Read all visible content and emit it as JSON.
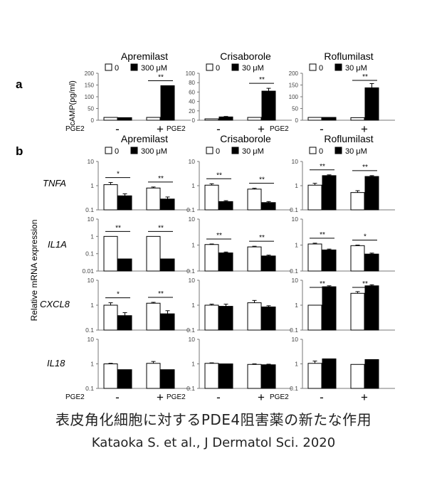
{
  "panel_labels": {
    "a": "a",
    "b": "b"
  },
  "legend": {
    "zero": "0",
    "dose_300": "300 μM",
    "dose_30": "30 μM"
  },
  "pge2": {
    "label": "PGE2",
    "minus": "-",
    "plus": "+"
  },
  "axis_titles": {
    "camp": "cAMP(pg/ml)",
    "mrna": "Relative mRNA expression"
  },
  "caption": {
    "line1": "表皮角化細胞に対するPDE4阻害薬の新たな作用",
    "line2": "Kataoka S. et al., J Dermatol Sci. 2020"
  },
  "colors": {
    "control": "#ffffff",
    "treated": "#000000"
  },
  "chart_data": [
    {
      "type": "bar",
      "panel": "a",
      "title": "Apremilast",
      "legend": "300 μM",
      "scale": "linear",
      "ylim": [
        0,
        200
      ],
      "ticks": [
        "200",
        "150",
        "100",
        "50",
        "0"
      ],
      "categories": [
        "-",
        "+"
      ],
      "series": [
        {
          "name": "0",
          "values": [
            12,
            12
          ],
          "err": [
            0,
            0
          ]
        },
        {
          "name": "300 μM",
          "values": [
            11,
            147
          ],
          "err": [
            0,
            0
          ]
        }
      ],
      "sig": [
        null,
        "**"
      ]
    },
    {
      "type": "bar",
      "panel": "a",
      "title": "Crisaborole",
      "legend": "30 μM",
      "scale": "linear",
      "ylim": [
        0,
        100
      ],
      "ticks": [
        "100",
        "80",
        "60",
        "40",
        "20",
        "0"
      ],
      "categories": [
        "-",
        "+"
      ],
      "series": [
        {
          "name": "0",
          "values": [
            3,
            6
          ],
          "err": [
            0,
            0
          ]
        },
        {
          "name": "30 μM",
          "values": [
            7,
            62
          ],
          "err": [
            1,
            6
          ]
        }
      ],
      "sig": [
        null,
        "**"
      ]
    },
    {
      "type": "bar",
      "panel": "a",
      "title": "Roflumilast",
      "legend": "30 μM",
      "scale": "linear",
      "ylim": [
        0,
        200
      ],
      "ticks": [
        "200",
        "150",
        "100",
        "50",
        "0"
      ],
      "categories": [
        "-",
        "+"
      ],
      "series": [
        {
          "name": "0",
          "values": [
            12,
            11
          ],
          "err": [
            0,
            0
          ]
        },
        {
          "name": "30 μM",
          "values": [
            12,
            138
          ],
          "err": [
            0,
            18
          ]
        }
      ],
      "sig": [
        null,
        "**"
      ]
    },
    {
      "type": "bar",
      "panel": "b",
      "gene": "TNFA",
      "drug": "Apremilast",
      "scale": "log",
      "ylim": [
        0.1,
        10
      ],
      "ticks": [
        "10",
        "1",
        "0.1"
      ],
      "categories": [
        "-",
        "+"
      ],
      "series": [
        {
          "name": "0",
          "values": [
            1.1,
            0.8
          ],
          "err": [
            0.25,
            0.08
          ]
        },
        {
          "name": "300 μM",
          "values": [
            0.38,
            0.28
          ],
          "err": [
            0.08,
            0.06
          ]
        }
      ],
      "sig": [
        "*",
        "**"
      ]
    },
    {
      "type": "bar",
      "panel": "b",
      "gene": "TNFA",
      "drug": "Crisaborole",
      "scale": "log",
      "ylim": [
        0.1,
        10
      ],
      "ticks": [
        "10",
        "1",
        "0.1"
      ],
      "categories": [
        "-",
        "+"
      ],
      "series": [
        {
          "name": "0",
          "values": [
            1.05,
            0.72
          ],
          "err": [
            0.15,
            0.06
          ]
        },
        {
          "name": "30 μM",
          "values": [
            0.22,
            0.2
          ],
          "err": [
            0.02,
            0.02
          ]
        }
      ],
      "sig": [
        "**",
        "**"
      ]
    },
    {
      "type": "bar",
      "panel": "b",
      "gene": "TNFA",
      "drug": "Roflumilast",
      "scale": "log",
      "ylim": [
        0.1,
        10
      ],
      "ticks": [
        "10",
        "1",
        "0.1"
      ],
      "categories": [
        "-",
        "+"
      ],
      "series": [
        {
          "name": "0",
          "values": [
            1.05,
            0.52
          ],
          "err": [
            0.2,
            0.1
          ]
        },
        {
          "name": "30 μM",
          "values": [
            2.6,
            2.4
          ],
          "err": [
            0.2,
            0.2
          ]
        }
      ],
      "sig": [
        "**",
        "**"
      ]
    },
    {
      "type": "bar",
      "panel": "b",
      "gene": "IL1A",
      "drug": "Apremilast",
      "scale": "log",
      "ylim": [
        0.01,
        10
      ],
      "ticks": [
        "10",
        "1",
        "0.1",
        "0.01"
      ],
      "categories": [
        "-",
        "+"
      ],
      "series": [
        {
          "name": "0",
          "values": [
            1.0,
            1.0
          ],
          "err": [
            0,
            0
          ]
        },
        {
          "name": "300 μM",
          "values": [
            0.05,
            0.05
          ],
          "err": [
            0,
            0
          ]
        }
      ],
      "sig": [
        "**",
        "**"
      ]
    },
    {
      "type": "bar",
      "panel": "b",
      "gene": "IL1A",
      "drug": "Crisaborole",
      "scale": "log",
      "ylim": [
        0.1,
        10
      ],
      "ticks": [
        "10",
        "1",
        "0.1"
      ],
      "categories": [
        "-",
        "+"
      ],
      "series": [
        {
          "name": "0",
          "values": [
            1.05,
            0.85
          ],
          "err": [
            0.05,
            0.05
          ]
        },
        {
          "name": "30 μM",
          "values": [
            0.5,
            0.38
          ],
          "err": [
            0.04,
            0.03
          ]
        }
      ],
      "sig": [
        "**",
        "**"
      ]
    },
    {
      "type": "bar",
      "panel": "b",
      "gene": "IL1A",
      "drug": "Roflumilast",
      "scale": "log",
      "ylim": [
        0.1,
        10
      ],
      "ticks": [
        "10",
        "1",
        "0.1"
      ],
      "categories": [
        "-",
        "+"
      ],
      "series": [
        {
          "name": "0",
          "values": [
            1.1,
            0.95
          ],
          "err": [
            0.08,
            0.05
          ]
        },
        {
          "name": "30 μM",
          "values": [
            0.65,
            0.45
          ],
          "err": [
            0.05,
            0.04
          ]
        }
      ],
      "sig": [
        "**",
        "*"
      ]
    },
    {
      "type": "bar",
      "panel": "b",
      "gene": "CXCL8",
      "drug": "Apremilast",
      "scale": "log",
      "ylim": [
        0.1,
        10
      ],
      "ticks": [
        "10",
        "1",
        "0.1"
      ],
      "categories": [
        "-",
        "+"
      ],
      "series": [
        {
          "name": "0",
          "values": [
            1.0,
            1.2
          ],
          "err": [
            0.25,
            0.1
          ]
        },
        {
          "name": "300 μM",
          "values": [
            0.38,
            0.45
          ],
          "err": [
            0.12,
            0.15
          ]
        }
      ],
      "sig": [
        "*",
        "**"
      ]
    },
    {
      "type": "bar",
      "panel": "b",
      "gene": "CXCL8",
      "drug": "Crisaborole",
      "scale": "log",
      "ylim": [
        0.1,
        10
      ],
      "ticks": [
        "10",
        "1",
        "0.1"
      ],
      "categories": [
        "-",
        "+"
      ],
      "series": [
        {
          "name": "0",
          "values": [
            1.0,
            1.25
          ],
          "err": [
            0.1,
            0.3
          ]
        },
        {
          "name": "30 μM",
          "values": [
            0.9,
            0.85
          ],
          "err": [
            0.2,
            0.1
          ]
        }
      ],
      "sig": [
        null,
        null
      ]
    },
    {
      "type": "bar",
      "panel": "b",
      "gene": "CXCL8",
      "drug": "Roflumilast",
      "scale": "log",
      "ylim": [
        0.1,
        10
      ],
      "ticks": [
        "10",
        "1",
        "0.1"
      ],
      "categories": [
        "-",
        "+"
      ],
      "series": [
        {
          "name": "0",
          "values": [
            1.0,
            3.0
          ],
          "err": [
            0,
            0.5
          ]
        },
        {
          "name": "30 μM",
          "values": [
            5.5,
            6.0
          ],
          "err": [
            0.5,
            0.6
          ]
        }
      ],
      "sig": [
        "**",
        "**"
      ]
    },
    {
      "type": "bar",
      "panel": "b",
      "gene": "IL18",
      "drug": "Apremilast",
      "scale": "log",
      "ylim": [
        0.1,
        10
      ],
      "ticks": [
        "10",
        "1",
        "0.1"
      ],
      "categories": [
        "-",
        "+"
      ],
      "series": [
        {
          "name": "0",
          "values": [
            1.0,
            1.05
          ],
          "err": [
            0.05,
            0.2
          ]
        },
        {
          "name": "300 μM",
          "values": [
            0.58,
            0.58
          ],
          "err": [
            0,
            0
          ]
        }
      ],
      "sig": [
        null,
        null
      ]
    },
    {
      "type": "bar",
      "panel": "b",
      "gene": "IL18",
      "drug": "Crisaborole",
      "scale": "log",
      "ylim": [
        0.1,
        10
      ],
      "ticks": [
        "10",
        "1",
        "0.1"
      ],
      "categories": [
        "-",
        "+"
      ],
      "series": [
        {
          "name": "0",
          "values": [
            1.05,
            0.95
          ],
          "err": [
            0.05,
            0.05
          ]
        },
        {
          "name": "30 μM",
          "values": [
            1.0,
            0.92
          ],
          "err": [
            0,
            0.05
          ]
        }
      ],
      "sig": [
        null,
        null
      ]
    },
    {
      "type": "bar",
      "panel": "b",
      "gene": "IL18",
      "drug": "Roflumilast",
      "scale": "log",
      "ylim": [
        0.1,
        10
      ],
      "ticks": [
        "10",
        "1",
        "0.1"
      ],
      "categories": [
        "-",
        "+"
      ],
      "series": [
        {
          "name": "0",
          "values": [
            1.05,
            0.95
          ],
          "err": [
            0.25,
            0
          ]
        },
        {
          "name": "30 μM",
          "values": [
            1.6,
            1.5
          ],
          "err": [
            0,
            0
          ]
        }
      ],
      "sig": [
        null,
        null
      ]
    }
  ]
}
